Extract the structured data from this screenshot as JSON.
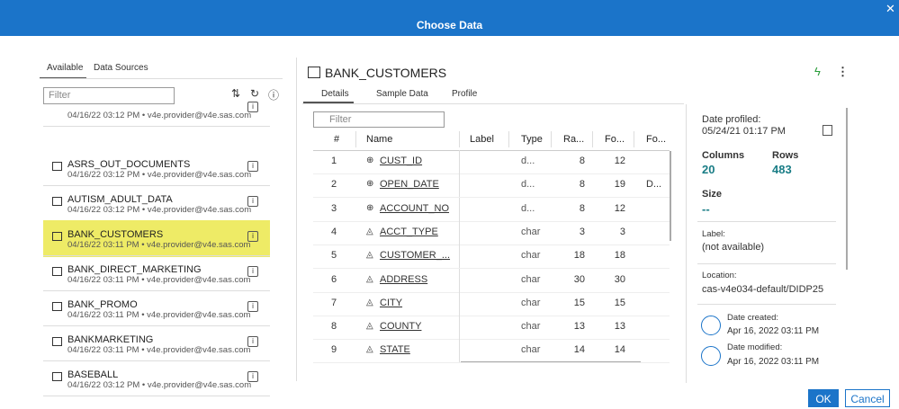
{
  "dialog": {
    "title": "Choose Data",
    "ok": "OK",
    "cancel": "Cancel"
  },
  "left": {
    "tabs": [
      "Available",
      "Data Sources"
    ],
    "filter": "Filter",
    "items": [
      {
        "meta": "04/16/22 03:12 PM • v4e.provider@v4e.sas.com"
      },
      {
        "name": "ASRS_OUT_DOCUMENTS",
        "meta": "04/16/22 03:12 PM • v4e.provider@v4e.sas.com"
      },
      {
        "name": "AUTISM_ADULT_DATA",
        "meta": "04/16/22 03:12 PM • v4e.provider@v4e.sas.com"
      },
      {
        "name": "BANK_CUSTOMERS",
        "meta": "04/16/22 03:11 PM • v4e.provider@v4e.sas.com"
      },
      {
        "name": "BANK_DIRECT_MARKETING",
        "meta": "04/16/22 03:11 PM • v4e.provider@v4e.sas.com"
      },
      {
        "name": "BANK_PROMO",
        "meta": "04/16/22 03:11 PM • v4e.provider@v4e.sas.com"
      },
      {
        "name": "BANKMARKETING",
        "meta": "04/16/22 03:11 PM • v4e.provider@v4e.sas.com"
      },
      {
        "name": "BASEBALL",
        "meta": "04/16/22 03:12 PM • v4e.provider@v4e.sas.com"
      }
    ]
  },
  "right": {
    "title": "BANK_CUSTOMERS",
    "tabs": [
      "Details",
      "Sample Data",
      "Profile"
    ],
    "filter": "Filter",
    "table": {
      "headers": [
        "#",
        "Name",
        "Label",
        "Type",
        "Ra...",
        "Fo...",
        "Fo..."
      ],
      "rows": [
        {
          "n": 1,
          "name": "CUST_ID",
          "type": "d...",
          "raw": 8,
          "fmt": 12
        },
        {
          "n": 2,
          "name": "OPEN_DATE",
          "type": "d...",
          "raw": 8,
          "fmt": 19,
          "fmt_name": "D..."
        },
        {
          "n": 3,
          "name": "ACCOUNT_NO",
          "type": "d...",
          "raw": 8,
          "fmt": 12
        },
        {
          "n": 4,
          "name": "ACCT_TYPE",
          "type": "char",
          "raw": 3,
          "fmt": 3
        },
        {
          "n": 5,
          "name": "CUSTOMER_...",
          "type": "char",
          "raw": 18,
          "fmt": 18
        },
        {
          "n": 6,
          "name": "ADDRESS",
          "type": "char",
          "raw": 30,
          "fmt": 30
        },
        {
          "n": 7,
          "name": "CITY",
          "type": "char",
          "raw": 15,
          "fmt": 15
        },
        {
          "n": 8,
          "name": "COUNTY",
          "type": "char",
          "raw": 13,
          "fmt": 13
        },
        {
          "n": 9,
          "name": "STATE",
          "type": "char",
          "raw": 14,
          "fmt": 14
        }
      ]
    },
    "info": {
      "profiled_label": "Date profiled:",
      "profiled": "05/24/21 01:17 PM",
      "columns_label": "Columns",
      "columns": 20,
      "rows_label": "Rows",
      "rows": 483,
      "size_label": "Size",
      "size": "--",
      "label_label": "Label:",
      "label": "(not available)",
      "location_label": "Location:",
      "location": "cas-v4e034-default/DIDP25",
      "created_label": "Date created:",
      "created": "Apr 16, 2022 03:11 PM",
      "modified_label": "Date modified:",
      "modified": "Apr 16, 2022 03:11 PM"
    }
  }
}
